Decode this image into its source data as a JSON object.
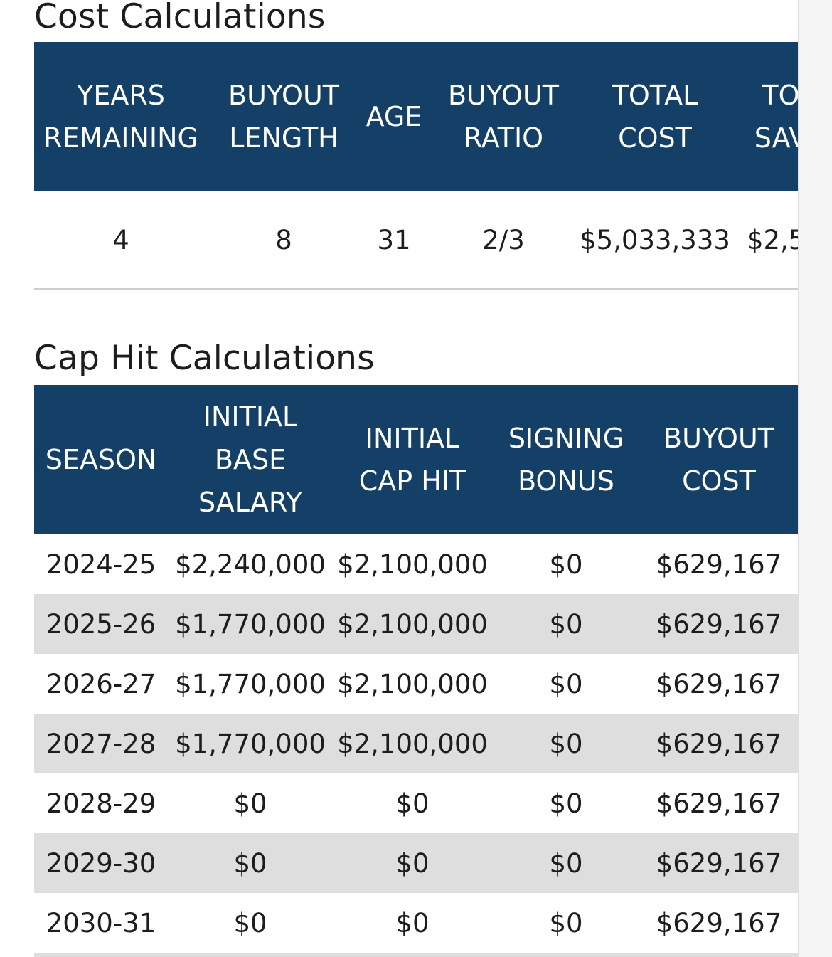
{
  "cost_section": {
    "title": "Cost Calculations",
    "headers": [
      "YEARS\nREMAINING",
      "BUYOUT\nLENGTH",
      "AGE",
      "BUYOUT\nRATIO",
      "TOTAL\nCOST",
      "TO\nSAV"
    ],
    "row": [
      "4",
      "8",
      "31",
      "2/3",
      "$5,033,333",
      "$2,5"
    ]
  },
  "cap_section": {
    "title": "Cap Hit Calculations",
    "headers": [
      "SEASON",
      "INITIAL\nBASE\nSALARY",
      "INITIAL\nCAP HIT",
      "SIGNING\nBONUS",
      "BUYOUT\nCOST"
    ],
    "rows": [
      [
        "2024-25",
        "$2,240,000",
        "$2,100,000",
        "$0",
        "$629,167"
      ],
      [
        "2025-26",
        "$1,770,000",
        "$2,100,000",
        "$0",
        "$629,167"
      ],
      [
        "2026-27",
        "$1,770,000",
        "$2,100,000",
        "$0",
        "$629,167"
      ],
      [
        "2027-28",
        "$1,770,000",
        "$2,100,000",
        "$0",
        "$629,167"
      ],
      [
        "2028-29",
        "$0",
        "$0",
        "$0",
        "$629,167"
      ],
      [
        "2029-30",
        "$0",
        "$0",
        "$0",
        "$629,167"
      ],
      [
        "2030-31",
        "$0",
        "$0",
        "$0",
        "$629,167"
      ]
    ]
  },
  "colors": {
    "header_bg": "#143f66",
    "header_text": "#ffffff",
    "stripe": "#dedede",
    "text": "#1d1d1d"
  }
}
